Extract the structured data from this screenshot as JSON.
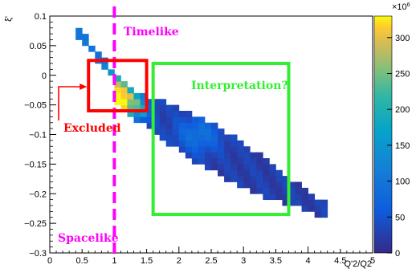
{
  "chart_data": {
    "type": "heatmap",
    "title": "",
    "xlabel": "Q'2/Q2",
    "ylabel": "ξ'",
    "xlim": [
      0,
      5
    ],
    "ylim": [
      -0.3,
      0.1
    ],
    "x_ticks": [
      "0",
      "0.5",
      "1",
      "1.5",
      "2",
      "2.5",
      "3",
      "3.5",
      "4",
      "4.5",
      "5"
    ],
    "y_ticks": [
      "0.1",
      "0.05",
      "0",
      "−0.05",
      "−0.1",
      "−0.15",
      "−0.2",
      "−0.25",
      "−0.3"
    ],
    "colorbar": {
      "min": 0,
      "max": 330,
      "exponent_label": "×10",
      "exponent_power": "6",
      "ticks": [
        "0",
        "50",
        "100",
        "150",
        "200",
        "250",
        "300"
      ]
    },
    "bands": [
      {
        "x0": 0.42,
        "x1": 1.55,
        "y_start": 0.075,
        "y_end": -0.075,
        "width": 0.018
      },
      {
        "x0": 1.0,
        "x1": 4.35,
        "y_start": -0.03,
        "y_end": -0.235,
        "width": 0.055
      }
    ],
    "hotspots": [
      {
        "x": 0.85,
        "y": -0.03,
        "value": 260
      },
      {
        "x": 1.1,
        "y": -0.05,
        "value": 230
      },
      {
        "x": 2.3,
        "y": -0.1,
        "value": 70
      }
    ],
    "annotations": {
      "timelike": "Timelike",
      "spacelike": "Spacelike",
      "excluded": "Excluded",
      "interpretation": "Interpretation?"
    },
    "divider": {
      "x": 1.0
    },
    "boxes": {
      "excluded": {
        "x0": 0.6,
        "x1": 1.5,
        "y0": -0.06,
        "y1": 0.025
      },
      "interpretation": {
        "x0": 1.6,
        "x1": 3.7,
        "y0": -0.235,
        "y1": 0.02
      }
    },
    "colors": {
      "timelike": "#ff00ff",
      "spacelike": "#ff00ff",
      "excluded": "#ff0000",
      "interpretation": "#33ee33"
    }
  }
}
